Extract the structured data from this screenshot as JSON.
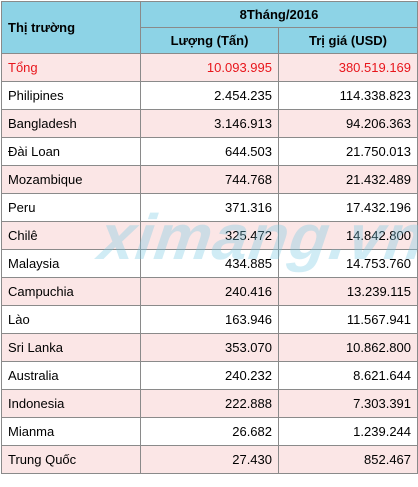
{
  "table": {
    "header": {
      "market_label": "Thị trường",
      "period_label": "8Tháng/2016",
      "volume_label": "Lượng (Tấn)",
      "value_label": "Trị giá (USD)"
    },
    "rows": [
      {
        "market": "Tổng",
        "volume": "10.093.995",
        "value": "380.519.169"
      },
      {
        "market": "Philipines",
        "volume": "2.454.235",
        "value": "114.338.823"
      },
      {
        "market": "Bangladesh",
        "volume": "3.146.913",
        "value": "94.206.363"
      },
      {
        "market": "Đài Loan",
        "volume": "644.503",
        "value": "21.750.013"
      },
      {
        "market": "Mozambique",
        "volume": "744.768",
        "value": "21.432.489"
      },
      {
        "market": "Peru",
        "volume": "371.316",
        "value": "17.432.196"
      },
      {
        "market": "Chilê",
        "volume": "325.472",
        "value": "14.842.800"
      },
      {
        "market": "Malaysia",
        "volume": "434.885",
        "value": "14.753.760"
      },
      {
        "market": "Campuchia",
        "volume": "240.416",
        "value": "13.239.115"
      },
      {
        "market": "Lào",
        "volume": "163.946",
        "value": "11.567.941"
      },
      {
        "market": "Sri Lanka",
        "volume": "353.070",
        "value": "10.862.800"
      },
      {
        "market": "Australia",
        "volume": "240.232",
        "value": "8.621.644"
      },
      {
        "market": "Indonesia",
        "volume": "222.888",
        "value": "7.303.391"
      },
      {
        "market": "Mianma",
        "volume": "26.682",
        "value": "1.239.244"
      },
      {
        "market": "Trung Quốc",
        "volume": "27.430",
        "value": "852.467"
      }
    ]
  },
  "watermark": "ximang.vn",
  "colors": {
    "header_bg": "#8dd3e6",
    "row_pink": "#fbe6e6",
    "row_white": "#ffffff",
    "total_text": "#e8161c",
    "border": "#8a8a8a"
  }
}
